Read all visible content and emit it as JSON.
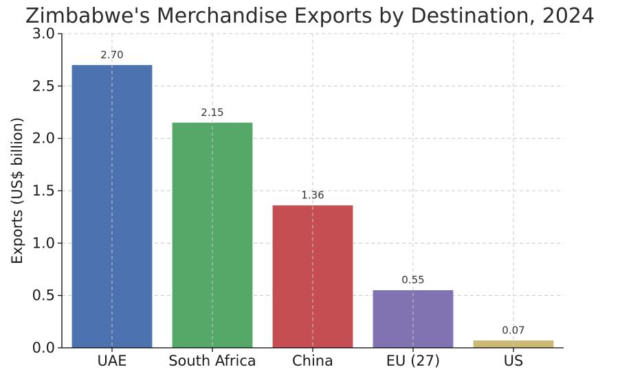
{
  "chart_data": {
    "type": "bar",
    "title": "Zimbabwe's Merchandise Exports by Destination, 2024",
    "xlabel": "",
    "ylabel": "Exports (US$ billion)",
    "categories": [
      "UAE",
      "South Africa",
      "China",
      "EU (27)",
      "US"
    ],
    "values": [
      2.7,
      2.15,
      1.36,
      0.55,
      0.07
    ],
    "data_labels": [
      "2.70",
      "2.15",
      "1.36",
      "0.55",
      "0.07"
    ],
    "colors": [
      "#4c72b0",
      "#55a868",
      "#c44e52",
      "#8172b2",
      "#ccb974"
    ],
    "ylim": [
      0,
      3.0
    ],
    "yticks": [
      0.0,
      0.5,
      1.0,
      1.5,
      2.0,
      2.5,
      3.0
    ],
    "ytick_labels": [
      "0.0",
      "0.5",
      "1.0",
      "1.5",
      "2.0",
      "2.5",
      "3.0"
    ],
    "grid": true,
    "legend": "none"
  }
}
